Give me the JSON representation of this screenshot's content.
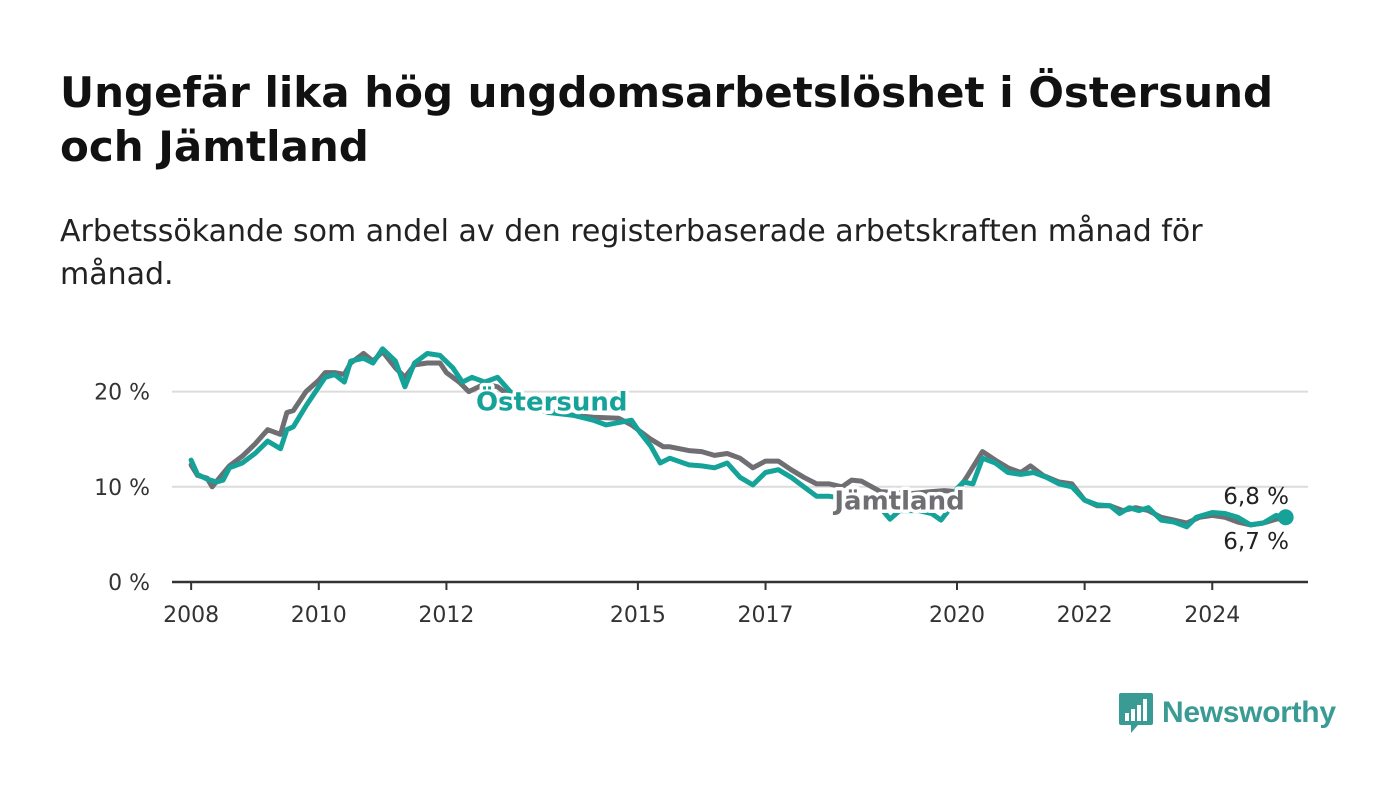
{
  "title": "Ungefär lika hög ungdomsarbetslöshet i Östersund och Jämtland",
  "subtitle": "Arbetssökande som andel av den registerbaserade arbetskraften månad för månad.",
  "brand": {
    "name": "Newsworthy",
    "icon": "bar-chart-speech-bubble-icon",
    "color": "#3a9b94"
  },
  "chart_data": {
    "type": "line",
    "ylim": [
      0,
      25
    ],
    "xlim": [
      2007.7,
      2025.5
    ],
    "yticks": [
      0,
      10,
      20
    ],
    "ytick_labels": [
      "0 %",
      "10 %",
      "20 %"
    ],
    "xticks": [
      2008,
      2010,
      2012,
      2015,
      2017,
      2020,
      2022,
      2024
    ],
    "xtick_labels": [
      "2008",
      "2010",
      "2012",
      "2015",
      "2017",
      "2020",
      "2022",
      "2024"
    ],
    "grid": true,
    "series": [
      {
        "name": "Jämtland",
        "color": "#6e6e73",
        "end_label": "6,7 %",
        "points": [
          [
            2008.0,
            12.3
          ],
          [
            2008.1,
            11.2
          ],
          [
            2008.25,
            10.9
          ],
          [
            2008.33,
            10.0
          ],
          [
            2008.45,
            11.0
          ],
          [
            2008.6,
            12.2
          ],
          [
            2008.8,
            13.2
          ],
          [
            2009.0,
            14.5
          ],
          [
            2009.2,
            16.0
          ],
          [
            2009.4,
            15.5
          ],
          [
            2009.5,
            17.8
          ],
          [
            2009.6,
            18.0
          ],
          [
            2009.8,
            20.0
          ],
          [
            2010.0,
            21.2
          ],
          [
            2010.1,
            22.0
          ],
          [
            2010.25,
            22.0
          ],
          [
            2010.4,
            21.8
          ],
          [
            2010.5,
            23.0
          ],
          [
            2010.7,
            24.0
          ],
          [
            2010.85,
            23.2
          ],
          [
            2011.0,
            24.2
          ],
          [
            2011.2,
            22.5
          ],
          [
            2011.35,
            21.5
          ],
          [
            2011.5,
            22.8
          ],
          [
            2011.7,
            23.0
          ],
          [
            2011.9,
            23.0
          ],
          [
            2012.0,
            22.0
          ],
          [
            2012.2,
            21.0
          ],
          [
            2012.35,
            20.0
          ],
          [
            2012.6,
            20.8
          ],
          [
            2012.8,
            20.5
          ],
          [
            2013.0,
            19.5
          ],
          [
            2013.3,
            18.5
          ],
          [
            2013.6,
            18.0
          ],
          [
            2014.0,
            17.5
          ],
          [
            2014.3,
            17.3
          ],
          [
            2014.7,
            17.2
          ],
          [
            2014.9,
            16.5
          ],
          [
            2015.2,
            15.0
          ],
          [
            2015.4,
            14.2
          ],
          [
            2015.5,
            14.2
          ],
          [
            2015.8,
            13.8
          ],
          [
            2016.0,
            13.7
          ],
          [
            2016.2,
            13.3
          ],
          [
            2016.4,
            13.5
          ],
          [
            2016.6,
            13.0
          ],
          [
            2016.8,
            12.0
          ],
          [
            2017.0,
            12.7
          ],
          [
            2017.2,
            12.7
          ],
          [
            2017.4,
            11.8
          ],
          [
            2017.6,
            11.0
          ],
          [
            2017.8,
            10.3
          ],
          [
            2018.0,
            10.3
          ],
          [
            2018.2,
            10.0
          ],
          [
            2018.35,
            10.7
          ],
          [
            2018.5,
            10.6
          ],
          [
            2018.8,
            9.5
          ],
          [
            2019.0,
            9.4
          ],
          [
            2019.3,
            9.3
          ],
          [
            2019.6,
            9.5
          ],
          [
            2019.8,
            9.6
          ],
          [
            2020.0,
            9.5
          ],
          [
            2020.15,
            11.0
          ],
          [
            2020.4,
            13.7
          ],
          [
            2020.6,
            12.8
          ],
          [
            2020.8,
            12.0
          ],
          [
            2021.0,
            11.5
          ],
          [
            2021.15,
            12.2
          ],
          [
            2021.35,
            11.2
          ],
          [
            2021.6,
            10.5
          ],
          [
            2021.8,
            10.3
          ],
          [
            2022.0,
            8.6
          ],
          [
            2022.2,
            8.0
          ],
          [
            2022.4,
            8.0
          ],
          [
            2022.6,
            7.5
          ],
          [
            2022.8,
            7.8
          ],
          [
            2023.0,
            7.5
          ],
          [
            2023.2,
            6.8
          ],
          [
            2023.4,
            6.5
          ],
          [
            2023.6,
            6.2
          ],
          [
            2023.8,
            6.8
          ],
          [
            2024.0,
            7.0
          ],
          [
            2024.2,
            6.8
          ],
          [
            2024.4,
            6.3
          ],
          [
            2024.6,
            6.0
          ],
          [
            2024.8,
            6.2
          ],
          [
            2025.0,
            6.6
          ],
          [
            2025.15,
            6.7
          ]
        ]
      },
      {
        "name": "Östersund",
        "color": "#15a399",
        "end_label": "6,8 %",
        "points": [
          [
            2008.0,
            12.8
          ],
          [
            2008.1,
            11.3
          ],
          [
            2008.25,
            10.8
          ],
          [
            2008.4,
            10.5
          ],
          [
            2008.5,
            10.7
          ],
          [
            2008.6,
            12.0
          ],
          [
            2008.8,
            12.5
          ],
          [
            2009.0,
            13.5
          ],
          [
            2009.2,
            14.8
          ],
          [
            2009.4,
            14.0
          ],
          [
            2009.5,
            16.0
          ],
          [
            2009.6,
            16.3
          ],
          [
            2009.8,
            18.5
          ],
          [
            2010.0,
            20.5
          ],
          [
            2010.1,
            21.5
          ],
          [
            2010.25,
            21.8
          ],
          [
            2010.4,
            21.0
          ],
          [
            2010.5,
            23.2
          ],
          [
            2010.7,
            23.5
          ],
          [
            2010.85,
            23.0
          ],
          [
            2011.0,
            24.5
          ],
          [
            2011.2,
            23.2
          ],
          [
            2011.35,
            20.5
          ],
          [
            2011.5,
            23.0
          ],
          [
            2011.7,
            24.0
          ],
          [
            2011.9,
            23.8
          ],
          [
            2012.1,
            22.5
          ],
          [
            2012.25,
            21.0
          ],
          [
            2012.4,
            21.5
          ],
          [
            2012.6,
            21.0
          ],
          [
            2012.8,
            21.5
          ],
          [
            2013.0,
            20.0
          ],
          [
            2013.3,
            18.5
          ],
          [
            2013.6,
            17.8
          ],
          [
            2014.0,
            17.5
          ],
          [
            2014.3,
            17.0
          ],
          [
            2014.5,
            16.5
          ],
          [
            2014.9,
            17.0
          ],
          [
            2015.0,
            16.0
          ],
          [
            2015.2,
            14.3
          ],
          [
            2015.35,
            12.5
          ],
          [
            2015.5,
            13.0
          ],
          [
            2015.8,
            12.3
          ],
          [
            2016.0,
            12.2
          ],
          [
            2016.2,
            12.0
          ],
          [
            2016.4,
            12.5
          ],
          [
            2016.6,
            11.0
          ],
          [
            2016.8,
            10.2
          ],
          [
            2017.0,
            11.5
          ],
          [
            2017.2,
            11.8
          ],
          [
            2017.4,
            11.0
          ],
          [
            2017.6,
            10.0
          ],
          [
            2017.8,
            9.0
          ],
          [
            2018.0,
            9.0
          ],
          [
            2018.2,
            8.8
          ],
          [
            2018.4,
            8.7
          ],
          [
            2018.6,
            8.5
          ],
          [
            2018.8,
            7.8
          ],
          [
            2018.95,
            6.6
          ],
          [
            2019.1,
            7.5
          ],
          [
            2019.4,
            7.5
          ],
          [
            2019.6,
            7.2
          ],
          [
            2019.75,
            6.5
          ],
          [
            2019.9,
            7.8
          ],
          [
            2020.0,
            9.8
          ],
          [
            2020.1,
            10.5
          ],
          [
            2020.25,
            10.3
          ],
          [
            2020.4,
            13.0
          ],
          [
            2020.6,
            12.5
          ],
          [
            2020.8,
            11.5
          ],
          [
            2021.0,
            11.3
          ],
          [
            2021.2,
            11.5
          ],
          [
            2021.4,
            11.0
          ],
          [
            2021.6,
            10.3
          ],
          [
            2021.8,
            10.0
          ],
          [
            2022.0,
            8.6
          ],
          [
            2022.2,
            8.1
          ],
          [
            2022.4,
            8.0
          ],
          [
            2022.55,
            7.2
          ],
          [
            2022.7,
            7.8
          ],
          [
            2022.85,
            7.5
          ],
          [
            2023.0,
            7.8
          ],
          [
            2023.2,
            6.5
          ],
          [
            2023.4,
            6.3
          ],
          [
            2023.6,
            5.8
          ],
          [
            2023.75,
            6.8
          ],
          [
            2024.0,
            7.3
          ],
          [
            2024.2,
            7.2
          ],
          [
            2024.4,
            6.8
          ],
          [
            2024.6,
            6.0
          ],
          [
            2024.8,
            6.2
          ],
          [
            2025.0,
            7.0
          ],
          [
            2025.15,
            6.8
          ]
        ]
      }
    ]
  }
}
